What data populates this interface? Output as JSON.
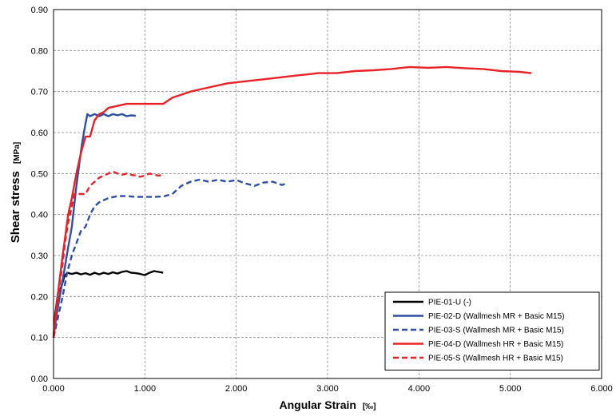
{
  "chart_data": {
    "type": "line",
    "xlabel": "Angular Strain",
    "xlabel_unit": "[‰]",
    "ylabel": "Shear stress",
    "ylabel_unit": "[MPa]",
    "xlim": [
      0,
      6
    ],
    "ylim": [
      0,
      0.9
    ],
    "x_ticks": [
      "0.000",
      "1.000",
      "2.000",
      "3.000",
      "4.000",
      "5.000",
      "6.000"
    ],
    "y_ticks": [
      "0.00",
      "0.10",
      "0.20",
      "0.30",
      "0.40",
      "0.50",
      "0.60",
      "0.70",
      "0.80",
      "0.90"
    ],
    "grid": true,
    "legend_position": "bottom-right",
    "series": [
      {
        "name": "PIE-01-U (-)",
        "color": "#000000",
        "dash": "solid",
        "points": [
          [
            0,
            0.1
          ],
          [
            0.02,
            0.16
          ],
          [
            0.05,
            0.21
          ],
          [
            0.08,
            0.22
          ],
          [
            0.1,
            0.235
          ],
          [
            0.12,
            0.25
          ],
          [
            0.15,
            0.258
          ],
          [
            0.2,
            0.255
          ],
          [
            0.25,
            0.258
          ],
          [
            0.3,
            0.254
          ],
          [
            0.35,
            0.257
          ],
          [
            0.4,
            0.253
          ],
          [
            0.45,
            0.258
          ],
          [
            0.5,
            0.254
          ],
          [
            0.55,
            0.258
          ],
          [
            0.6,
            0.255
          ],
          [
            0.65,
            0.259
          ],
          [
            0.7,
            0.256
          ],
          [
            0.75,
            0.26
          ],
          [
            0.8,
            0.262
          ],
          [
            0.85,
            0.258
          ],
          [
            0.9,
            0.257
          ],
          [
            0.95,
            0.255
          ],
          [
            1.0,
            0.252
          ],
          [
            1.05,
            0.258
          ],
          [
            1.1,
            0.262
          ],
          [
            1.15,
            0.26
          ],
          [
            1.2,
            0.258
          ]
        ]
      },
      {
        "name": "PIE-02-D (Wallmesh MR + Basic M15)",
        "color": "#2f4fa6",
        "dash": "solid",
        "points": [
          [
            0,
            0.1
          ],
          [
            0.03,
            0.15
          ],
          [
            0.06,
            0.19
          ],
          [
            0.1,
            0.24
          ],
          [
            0.13,
            0.28
          ],
          [
            0.16,
            0.32
          ],
          [
            0.2,
            0.37
          ],
          [
            0.22,
            0.41
          ],
          [
            0.25,
            0.47
          ],
          [
            0.28,
            0.52
          ],
          [
            0.31,
            0.57
          ],
          [
            0.34,
            0.61
          ],
          [
            0.37,
            0.645
          ],
          [
            0.4,
            0.64
          ],
          [
            0.45,
            0.645
          ],
          [
            0.5,
            0.64
          ],
          [
            0.55,
            0.645
          ],
          [
            0.6,
            0.64
          ],
          [
            0.65,
            0.645
          ],
          [
            0.7,
            0.642
          ],
          [
            0.75,
            0.645
          ],
          [
            0.8,
            0.64
          ],
          [
            0.85,
            0.642
          ],
          [
            0.9,
            0.641
          ]
        ]
      },
      {
        "name": "PIE-03-S (Wallmesh MR + Basic M15)",
        "color": "#2f4fa6",
        "dash": "dashed",
        "points": [
          [
            0,
            0.1
          ],
          [
            0.05,
            0.15
          ],
          [
            0.1,
            0.2
          ],
          [
            0.15,
            0.26
          ],
          [
            0.2,
            0.3
          ],
          [
            0.25,
            0.33
          ],
          [
            0.3,
            0.36
          ],
          [
            0.35,
            0.37
          ],
          [
            0.4,
            0.4
          ],
          [
            0.45,
            0.42
          ],
          [
            0.5,
            0.43
          ],
          [
            0.6,
            0.44
          ],
          [
            0.7,
            0.445
          ],
          [
            0.8,
            0.445
          ],
          [
            0.9,
            0.443
          ],
          [
            1.0,
            0.443
          ],
          [
            1.1,
            0.443
          ],
          [
            1.2,
            0.444
          ],
          [
            1.3,
            0.45
          ],
          [
            1.4,
            0.47
          ],
          [
            1.5,
            0.48
          ],
          [
            1.6,
            0.485
          ],
          [
            1.7,
            0.48
          ],
          [
            1.8,
            0.485
          ],
          [
            1.9,
            0.48
          ],
          [
            2.0,
            0.484
          ],
          [
            2.1,
            0.476
          ],
          [
            2.2,
            0.47
          ],
          [
            2.3,
            0.478
          ],
          [
            2.4,
            0.48
          ],
          [
            2.5,
            0.472
          ],
          [
            2.55,
            0.476
          ]
        ]
      },
      {
        "name": "PIE-04-D (Wallmesh HR + Basic M15)",
        "color": "#ea2127",
        "dash": "solid",
        "points": [
          [
            0,
            0.1
          ],
          [
            0.03,
            0.17
          ],
          [
            0.06,
            0.23
          ],
          [
            0.1,
            0.3
          ],
          [
            0.13,
            0.35
          ],
          [
            0.16,
            0.4
          ],
          [
            0.2,
            0.44
          ],
          [
            0.25,
            0.5
          ],
          [
            0.3,
            0.55
          ],
          [
            0.35,
            0.59
          ],
          [
            0.4,
            0.59
          ],
          [
            0.45,
            0.63
          ],
          [
            0.5,
            0.645
          ],
          [
            0.55,
            0.65
          ],
          [
            0.6,
            0.66
          ],
          [
            0.7,
            0.665
          ],
          [
            0.8,
            0.67
          ],
          [
            1.0,
            0.67
          ],
          [
            1.2,
            0.67
          ],
          [
            1.3,
            0.685
          ],
          [
            1.5,
            0.7
          ],
          [
            1.7,
            0.71
          ],
          [
            1.9,
            0.72
          ],
          [
            2.1,
            0.725
          ],
          [
            2.3,
            0.73
          ],
          [
            2.5,
            0.735
          ],
          [
            2.7,
            0.74
          ],
          [
            2.9,
            0.745
          ],
          [
            3.1,
            0.745
          ],
          [
            3.3,
            0.75
          ],
          [
            3.5,
            0.752
          ],
          [
            3.7,
            0.755
          ],
          [
            3.9,
            0.76
          ],
          [
            4.1,
            0.758
          ],
          [
            4.3,
            0.76
          ],
          [
            4.5,
            0.757
          ],
          [
            4.7,
            0.755
          ],
          [
            4.9,
            0.75
          ],
          [
            5.1,
            0.748
          ],
          [
            5.23,
            0.745
          ]
        ]
      },
      {
        "name": "PIE-05-S (Wallmesh HR + Basic M15)",
        "color": "#ea2127",
        "dash": "dashed",
        "points": [
          [
            0,
            0.1
          ],
          [
            0.03,
            0.16
          ],
          [
            0.06,
            0.22
          ],
          [
            0.1,
            0.28
          ],
          [
            0.13,
            0.34
          ],
          [
            0.16,
            0.38
          ],
          [
            0.2,
            0.42
          ],
          [
            0.23,
            0.45
          ],
          [
            0.3,
            0.45
          ],
          [
            0.35,
            0.45
          ],
          [
            0.4,
            0.47
          ],
          [
            0.45,
            0.48
          ],
          [
            0.5,
            0.49
          ],
          [
            0.55,
            0.495
          ],
          [
            0.6,
            0.5
          ],
          [
            0.65,
            0.505
          ],
          [
            0.7,
            0.5
          ],
          [
            0.75,
            0.497
          ],
          [
            0.8,
            0.5
          ],
          [
            0.85,
            0.497
          ],
          [
            0.9,
            0.495
          ],
          [
            0.95,
            0.492
          ],
          [
            1.0,
            0.495
          ],
          [
            1.05,
            0.5
          ],
          [
            1.1,
            0.497
          ],
          [
            1.15,
            0.495
          ],
          [
            1.2,
            0.497
          ]
        ]
      }
    ]
  }
}
